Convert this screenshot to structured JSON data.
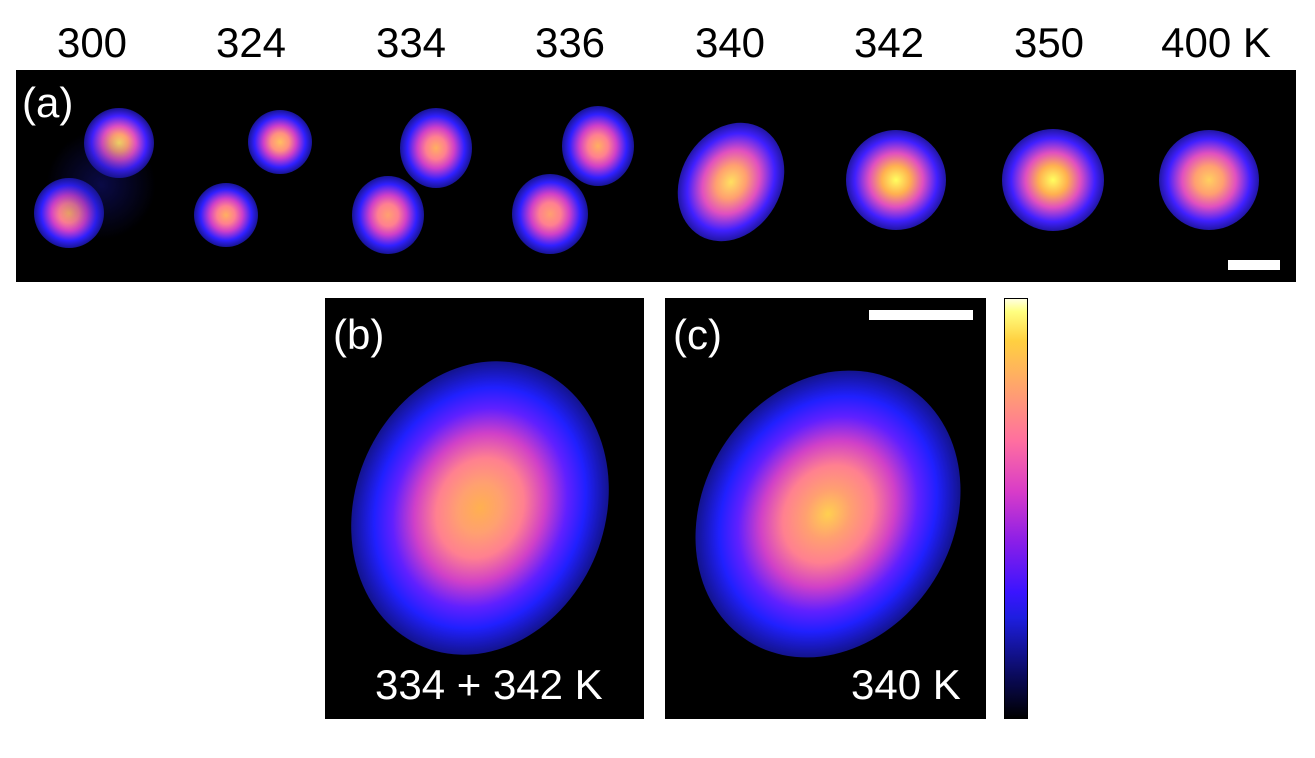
{
  "temperatures": [
    "300",
    "324",
    "334",
    "336",
    "340",
    "342",
    "350",
    "400 K"
  ],
  "panels": {
    "a": {
      "label": "(a)"
    },
    "b": {
      "label": "(b)",
      "caption": "334 + 342 K"
    },
    "c": {
      "label": "(c)",
      "caption": "340 K"
    }
  },
  "colormap": [
    "#000000",
    "#1e1ee0",
    "#d83cc8",
    "#ffa070",
    "#ffff80"
  ]
}
